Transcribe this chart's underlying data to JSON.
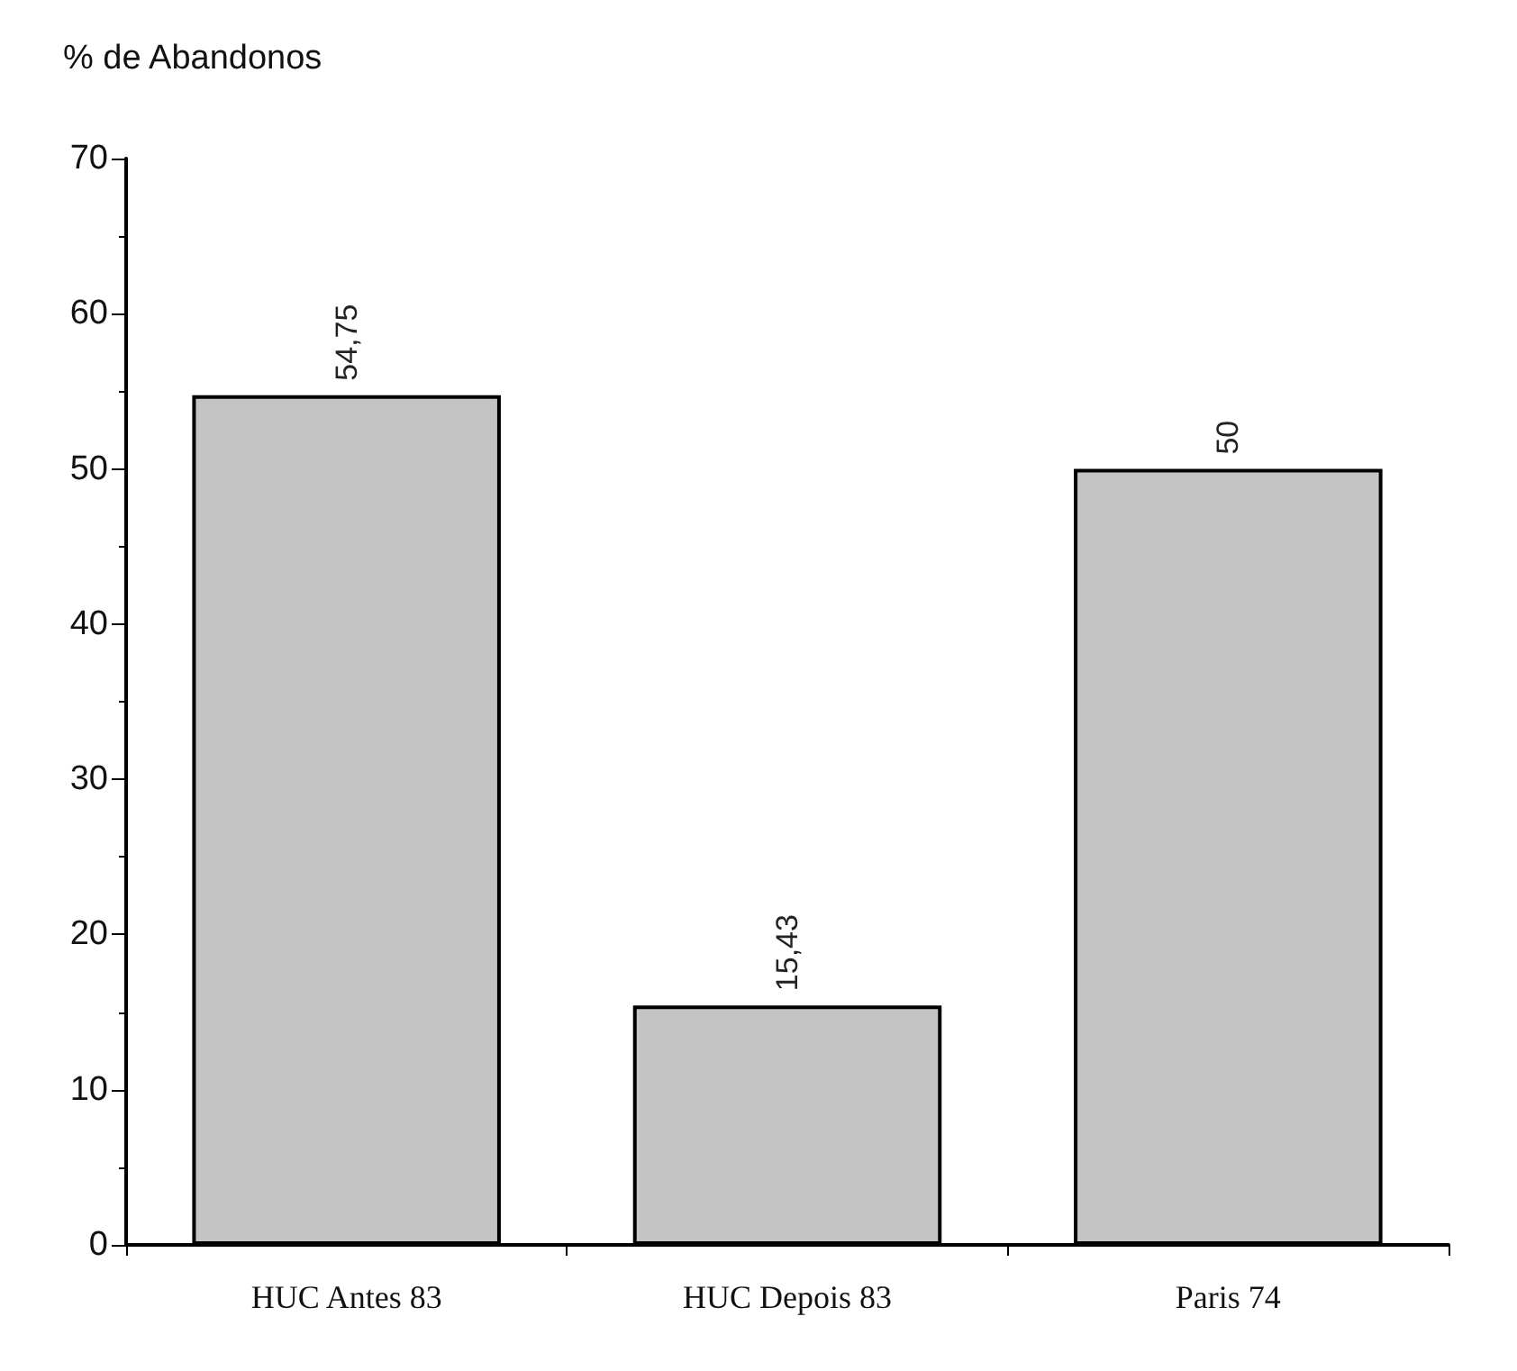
{
  "chart_data": {
    "type": "bar",
    "ylabel": "% de Abandonos",
    "categories": [
      "HUC Antes 83",
      "HUC Depois 83",
      "Paris 74"
    ],
    "values": [
      54.75,
      15.43,
      50
    ],
    "value_labels": [
      "54,75",
      "15,43",
      "50"
    ],
    "color": "#c4c4c4",
    "ylim": [
      0,
      70
    ],
    "yticks": [
      0,
      10,
      20,
      30,
      40,
      50,
      60,
      70
    ],
    "grid": false
  }
}
